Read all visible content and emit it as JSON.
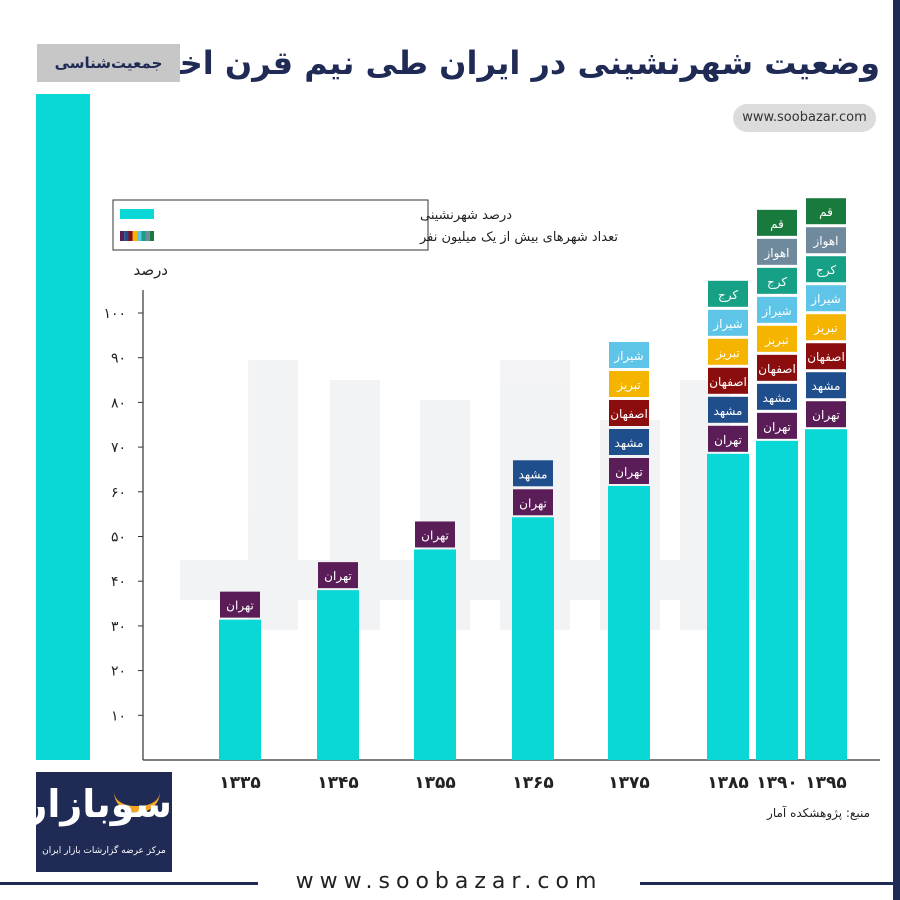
{
  "header": {
    "title": "وضعیت شهرنشینی در ایران طی نیم قرن اخیر",
    "tag": "جمعیت‌شناسی",
    "website_pill": "www.soobazar.com"
  },
  "brand": {
    "logo_text": "سوبازار",
    "logo_subtitle": "مرکز عرضه گزارشات بازار ایران",
    "footer_url": "www.soobazar.com",
    "primary_color": "#1f2a55",
    "accent_color": "#0ad8d6"
  },
  "source_note": "منبع: پژوهشکده آمار",
  "chart_data": {
    "type": "bar",
    "title": "وضعیت شهرنشینی در ایران طی نیم قرن اخیر",
    "ylabel": "درصد",
    "xlabel": "",
    "ylim": [
      0,
      100
    ],
    "yticks": [
      "۱۰",
      "۲۰",
      "۳۰",
      "۴۰",
      "۵۰",
      "۶۰",
      "۷۰",
      "۸۰",
      "۹۰",
      "۱۰۰"
    ],
    "grid": false,
    "legend_placement": "top-left",
    "legend": [
      {
        "label": "درصد شهرنشینی",
        "color": "#0ad8d6"
      },
      {
        "label": "تعداد شهرهای بیش از یک میلیون نفر",
        "color": "multicolor"
      }
    ],
    "city_colors": {
      "تهران": "#5b1d57",
      "مشهد": "#1f4e8c",
      "اصفهان": "#8b0d0d",
      "تبریز": "#f5b400",
      "شیراز": "#5ec4e8",
      "کرج": "#16a085",
      "اهواز": "#6e8a9c",
      "قم": "#187a3c"
    },
    "categories": [
      "۱۳۳۵",
      "۱۳۴۵",
      "۱۳۵۵",
      "۱۳۶۵",
      "۱۳۷۵",
      "۱۳۸۵",
      "۱۳۹۰",
      "۱۳۹۵"
    ],
    "series": [
      {
        "name": "درصد شهرنشینی",
        "values": [
          31.4,
          38,
          47.1,
          54.3,
          61.3,
          68.5,
          71.4,
          74
        ]
      }
    ],
    "million_cities": [
      [
        "تهران"
      ],
      [
        "تهران"
      ],
      [
        "تهران"
      ],
      [
        "تهران",
        "مشهد"
      ],
      [
        "تهران",
        "مشهد",
        "اصفهان",
        "تبریز",
        "شیراز"
      ],
      [
        "تهران",
        "مشهد",
        "اصفهان",
        "تبریز",
        "شیراز",
        "کرج"
      ],
      [
        "تهران",
        "مشهد",
        "اصفهان",
        "تبریز",
        "شیراز",
        "کرج",
        "اهواز",
        "قم"
      ],
      [
        "تهران",
        "مشهد",
        "اصفهان",
        "تبریز",
        "شیراز",
        "کرج",
        "اهواز",
        "قم"
      ]
    ]
  }
}
